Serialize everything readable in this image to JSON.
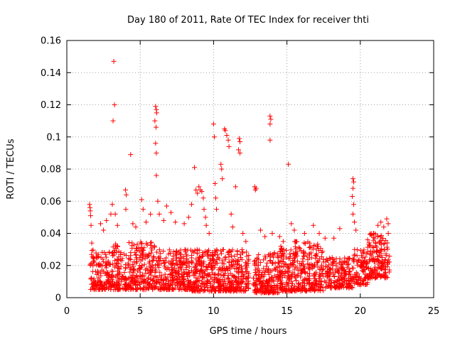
{
  "chart_data": {
    "type": "scatter",
    "title": "Day 180 of 2011, Rate Of TEC Index for receiver thti",
    "xlabel": "GPS time / hours",
    "ylabel": "ROTI / TECUs",
    "xlim": [
      0,
      25
    ],
    "ylim": [
      0,
      0.16
    ],
    "xticks": [
      0,
      5,
      10,
      15,
      20,
      25
    ],
    "xtick_labels": [
      "0",
      "5",
      "10",
      "15",
      "20",
      "25"
    ],
    "yticks": [
      0,
      0.02,
      0.04,
      0.06,
      0.08,
      0.1,
      0.12,
      0.14,
      0.16
    ],
    "ytick_labels": [
      "0",
      "0.02",
      "0.04",
      "0.06",
      "0.08",
      "0.1",
      "0.12",
      "0.14",
      "0.16"
    ],
    "grid": true,
    "marker": "+",
    "color": "#ff0000",
    "series": [
      {
        "name": "ROTI",
        "dense_clusters": [
          {
            "x_start": 1.6,
            "x_end": 3.0,
            "y_min": 0.005,
            "y_max": 0.03,
            "count": 140
          },
          {
            "x_start": 3.0,
            "x_end": 6.0,
            "y_min": 0.005,
            "y_max": 0.035,
            "count": 320
          },
          {
            "x_start": 6.0,
            "x_end": 8.5,
            "y_min": 0.005,
            "y_max": 0.03,
            "count": 260
          },
          {
            "x_start": 8.5,
            "x_end": 10.5,
            "y_min": 0.004,
            "y_max": 0.03,
            "count": 240
          },
          {
            "x_start": 10.5,
            "x_end": 12.4,
            "y_min": 0.004,
            "y_max": 0.03,
            "count": 220
          },
          {
            "x_start": 12.7,
            "x_end": 14.5,
            "y_min": 0.003,
            "y_max": 0.028,
            "count": 200
          },
          {
            "x_start": 14.5,
            "x_end": 17.5,
            "y_min": 0.004,
            "y_max": 0.035,
            "count": 340
          },
          {
            "x_start": 17.5,
            "x_end": 19.5,
            "y_min": 0.006,
            "y_max": 0.025,
            "count": 180
          },
          {
            "x_start": 19.5,
            "x_end": 20.5,
            "y_min": 0.008,
            "y_max": 0.03,
            "count": 90
          },
          {
            "x_start": 20.5,
            "x_end": 22.0,
            "y_min": 0.012,
            "y_max": 0.04,
            "count": 160
          }
        ],
        "outliers": [
          {
            "x": 1.55,
            "y": 0.058
          },
          {
            "x": 1.58,
            "y": 0.056
          },
          {
            "x": 1.6,
            "y": 0.054
          },
          {
            "x": 1.62,
            "y": 0.051
          },
          {
            "x": 1.65,
            "y": 0.045
          },
          {
            "x": 1.7,
            "y": 0.034
          },
          {
            "x": 2.3,
            "y": 0.046
          },
          {
            "x": 2.5,
            "y": 0.042
          },
          {
            "x": 2.7,
            "y": 0.048
          },
          {
            "x": 3.0,
            "y": 0.052
          },
          {
            "x": 3.1,
            "y": 0.058
          },
          {
            "x": 3.2,
            "y": 0.147
          },
          {
            "x": 3.25,
            "y": 0.12
          },
          {
            "x": 3.15,
            "y": 0.11
          },
          {
            "x": 3.3,
            "y": 0.052
          },
          {
            "x": 3.45,
            "y": 0.045
          },
          {
            "x": 4.0,
            "y": 0.067
          },
          {
            "x": 4.05,
            "y": 0.064
          },
          {
            "x": 4.02,
            "y": 0.055
          },
          {
            "x": 4.35,
            "y": 0.089
          },
          {
            "x": 4.5,
            "y": 0.046
          },
          {
            "x": 4.7,
            "y": 0.044
          },
          {
            "x": 5.1,
            "y": 0.061
          },
          {
            "x": 5.2,
            "y": 0.055
          },
          {
            "x": 5.4,
            "y": 0.047
          },
          {
            "x": 5.7,
            "y": 0.052
          },
          {
            "x": 6.05,
            "y": 0.119
          },
          {
            "x": 6.1,
            "y": 0.117
          },
          {
            "x": 6.12,
            "y": 0.115
          },
          {
            "x": 6.0,
            "y": 0.11
          },
          {
            "x": 6.08,
            "y": 0.106
          },
          {
            "x": 6.05,
            "y": 0.096
          },
          {
            "x": 6.1,
            "y": 0.09
          },
          {
            "x": 6.1,
            "y": 0.076
          },
          {
            "x": 6.2,
            "y": 0.06
          },
          {
            "x": 6.3,
            "y": 0.052
          },
          {
            "x": 6.6,
            "y": 0.048
          },
          {
            "x": 6.8,
            "y": 0.057
          },
          {
            "x": 7.1,
            "y": 0.053
          },
          {
            "x": 7.4,
            "y": 0.047
          },
          {
            "x": 8.0,
            "y": 0.046
          },
          {
            "x": 8.3,
            "y": 0.05
          },
          {
            "x": 8.5,
            "y": 0.058
          },
          {
            "x": 8.7,
            "y": 0.081
          },
          {
            "x": 8.8,
            "y": 0.067
          },
          {
            "x": 8.9,
            "y": 0.065
          },
          {
            "x": 9.0,
            "y": 0.069
          },
          {
            "x": 9.1,
            "y": 0.067
          },
          {
            "x": 9.2,
            "y": 0.066
          },
          {
            "x": 9.3,
            "y": 0.062
          },
          {
            "x": 9.35,
            "y": 0.055
          },
          {
            "x": 9.45,
            "y": 0.05
          },
          {
            "x": 9.5,
            "y": 0.045
          },
          {
            "x": 9.7,
            "y": 0.04
          },
          {
            "x": 10.0,
            "y": 0.108
          },
          {
            "x": 10.05,
            "y": 0.1
          },
          {
            "x": 10.1,
            "y": 0.071
          },
          {
            "x": 10.15,
            "y": 0.062
          },
          {
            "x": 10.2,
            "y": 0.055
          },
          {
            "x": 10.5,
            "y": 0.083
          },
          {
            "x": 10.55,
            "y": 0.08
          },
          {
            "x": 10.6,
            "y": 0.074
          },
          {
            "x": 10.75,
            "y": 0.105
          },
          {
            "x": 10.8,
            "y": 0.104
          },
          {
            "x": 10.9,
            "y": 0.101
          },
          {
            "x": 11.0,
            "y": 0.098
          },
          {
            "x": 11.05,
            "y": 0.094
          },
          {
            "x": 11.2,
            "y": 0.052
          },
          {
            "x": 11.3,
            "y": 0.044
          },
          {
            "x": 11.5,
            "y": 0.069
          },
          {
            "x": 11.75,
            "y": 0.099
          },
          {
            "x": 11.8,
            "y": 0.097
          },
          {
            "x": 11.7,
            "y": 0.092
          },
          {
            "x": 11.8,
            "y": 0.09
          },
          {
            "x": 12.0,
            "y": 0.04
          },
          {
            "x": 12.2,
            "y": 0.035
          },
          {
            "x": 12.8,
            "y": 0.069
          },
          {
            "x": 12.9,
            "y": 0.068
          },
          {
            "x": 12.85,
            "y": 0.067
          },
          {
            "x": 13.2,
            "y": 0.042
          },
          {
            "x": 13.5,
            "y": 0.038
          },
          {
            "x": 13.85,
            "y": 0.113
          },
          {
            "x": 13.9,
            "y": 0.111
          },
          {
            "x": 13.85,
            "y": 0.108
          },
          {
            "x": 13.85,
            "y": 0.098
          },
          {
            "x": 14.0,
            "y": 0.04
          },
          {
            "x": 14.5,
            "y": 0.038
          },
          {
            "x": 15.1,
            "y": 0.083
          },
          {
            "x": 15.3,
            "y": 0.046
          },
          {
            "x": 15.5,
            "y": 0.042
          },
          {
            "x": 16.2,
            "y": 0.04
          },
          {
            "x": 16.8,
            "y": 0.045
          },
          {
            "x": 17.2,
            "y": 0.04
          },
          {
            "x": 17.6,
            "y": 0.037
          },
          {
            "x": 18.2,
            "y": 0.037
          },
          {
            "x": 18.6,
            "y": 0.043
          },
          {
            "x": 19.5,
            "y": 0.074
          },
          {
            "x": 19.55,
            "y": 0.072
          },
          {
            "x": 19.5,
            "y": 0.068
          },
          {
            "x": 19.45,
            "y": 0.063
          },
          {
            "x": 19.55,
            "y": 0.058
          },
          {
            "x": 19.5,
            "y": 0.052
          },
          {
            "x": 19.6,
            "y": 0.047
          },
          {
            "x": 19.7,
            "y": 0.042
          },
          {
            "x": 20.5,
            "y": 0.036
          },
          {
            "x": 20.9,
            "y": 0.04
          },
          {
            "x": 21.2,
            "y": 0.045
          },
          {
            "x": 21.4,
            "y": 0.047
          },
          {
            "x": 21.6,
            "y": 0.044
          },
          {
            "x": 21.8,
            "y": 0.049
          },
          {
            "x": 21.9,
            "y": 0.046
          },
          {
            "x": 21.7,
            "y": 0.015
          }
        ]
      }
    ]
  }
}
